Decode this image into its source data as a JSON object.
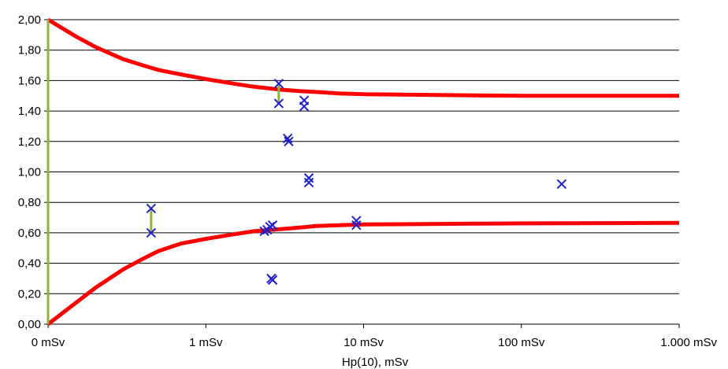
{
  "chart_data": {
    "type": "scatter",
    "title": "",
    "xlabel": "Hp(10), mSv",
    "ylabel": "",
    "x_scale": "log",
    "x_ticks": [
      {
        "value": 0.1,
        "label": "0 mSv"
      },
      {
        "value": 1,
        "label": "1 mSv"
      },
      {
        "value": 10,
        "label": "10 mSv"
      },
      {
        "value": 100,
        "label": "100 mSv"
      },
      {
        "value": 1000,
        "label": "1.000 mSv"
      }
    ],
    "xlim": [
      0.1,
      1000
    ],
    "ylim": [
      0,
      2
    ],
    "y_ticks": [
      {
        "value": 0,
        "label": "0,00"
      },
      {
        "value": 0.2,
        "label": "0,20"
      },
      {
        "value": 0.4,
        "label": "0,40"
      },
      {
        "value": 0.6,
        "label": "0,60"
      },
      {
        "value": 0.8,
        "label": "0,80"
      },
      {
        "value": 1.0,
        "label": "1,00"
      },
      {
        "value": 1.2,
        "label": "1,20"
      },
      {
        "value": 1.4,
        "label": "1,40"
      },
      {
        "value": 1.6,
        "label": "1,60"
      },
      {
        "value": 1.8,
        "label": "1,80"
      },
      {
        "value": 2.0,
        "label": "2,00"
      }
    ],
    "grid": "horizontal",
    "legend": "none",
    "series": [
      {
        "kind": "line",
        "color": "#ff0000",
        "x": [
          0.1,
          0.15,
          0.2,
          0.3,
          0.4,
          0.5,
          0.7,
          1,
          1.5,
          2,
          3,
          4,
          5,
          7,
          10,
          20,
          50,
          100,
          200,
          500,
          1000
        ],
        "y": [
          2.0,
          1.89,
          1.82,
          1.74,
          1.7,
          1.67,
          1.64,
          1.61,
          1.58,
          1.56,
          1.54,
          1.53,
          1.525,
          1.515,
          1.51,
          1.507,
          1.503,
          1.5,
          1.5,
          1.5,
          1.5
        ]
      },
      {
        "kind": "line",
        "color": "#ff0000",
        "x": [
          0.1,
          0.15,
          0.2,
          0.3,
          0.4,
          0.5,
          0.7,
          1,
          1.5,
          2,
          3,
          4,
          5,
          7,
          10,
          20,
          50,
          100,
          200,
          500,
          1000
        ],
        "y": [
          0.0,
          0.14,
          0.24,
          0.36,
          0.43,
          0.48,
          0.53,
          0.56,
          0.59,
          0.61,
          0.625,
          0.635,
          0.645,
          0.65,
          0.655,
          0.657,
          0.66,
          0.662,
          0.663,
          0.664,
          0.665
        ]
      },
      {
        "kind": "segments",
        "color": "#8db33a",
        "segments": [
          {
            "x": 0.1,
            "y0": 0.0,
            "y1": 2.0
          },
          {
            "x": 0.45,
            "y0": 0.6,
            "y1": 0.76
          },
          {
            "x": 2.9,
            "y0": 1.45,
            "y1": 1.58
          }
        ]
      },
      {
        "kind": "markers",
        "color": "#1f1fcc",
        "points": [
          {
            "x": 0.45,
            "y": 0.76
          },
          {
            "x": 0.45,
            "y": 0.6
          },
          {
            "x": 2.35,
            "y": 0.61
          },
          {
            "x": 2.45,
            "y": 0.62
          },
          {
            "x": 2.55,
            "y": 0.64
          },
          {
            "x": 2.65,
            "y": 0.65
          },
          {
            "x": 2.6,
            "y": 0.3
          },
          {
            "x": 2.65,
            "y": 0.29
          },
          {
            "x": 2.9,
            "y": 1.58
          },
          {
            "x": 2.9,
            "y": 1.45
          },
          {
            "x": 3.3,
            "y": 1.22
          },
          {
            "x": 3.35,
            "y": 1.2
          },
          {
            "x": 4.2,
            "y": 1.47
          },
          {
            "x": 4.2,
            "y": 1.43
          },
          {
            "x": 4.5,
            "y": 0.96
          },
          {
            "x": 4.5,
            "y": 0.93
          },
          {
            "x": 9.0,
            "y": 0.68
          },
          {
            "x": 9.0,
            "y": 0.65
          },
          {
            "x": 180,
            "y": 0.92
          }
        ]
      }
    ]
  }
}
